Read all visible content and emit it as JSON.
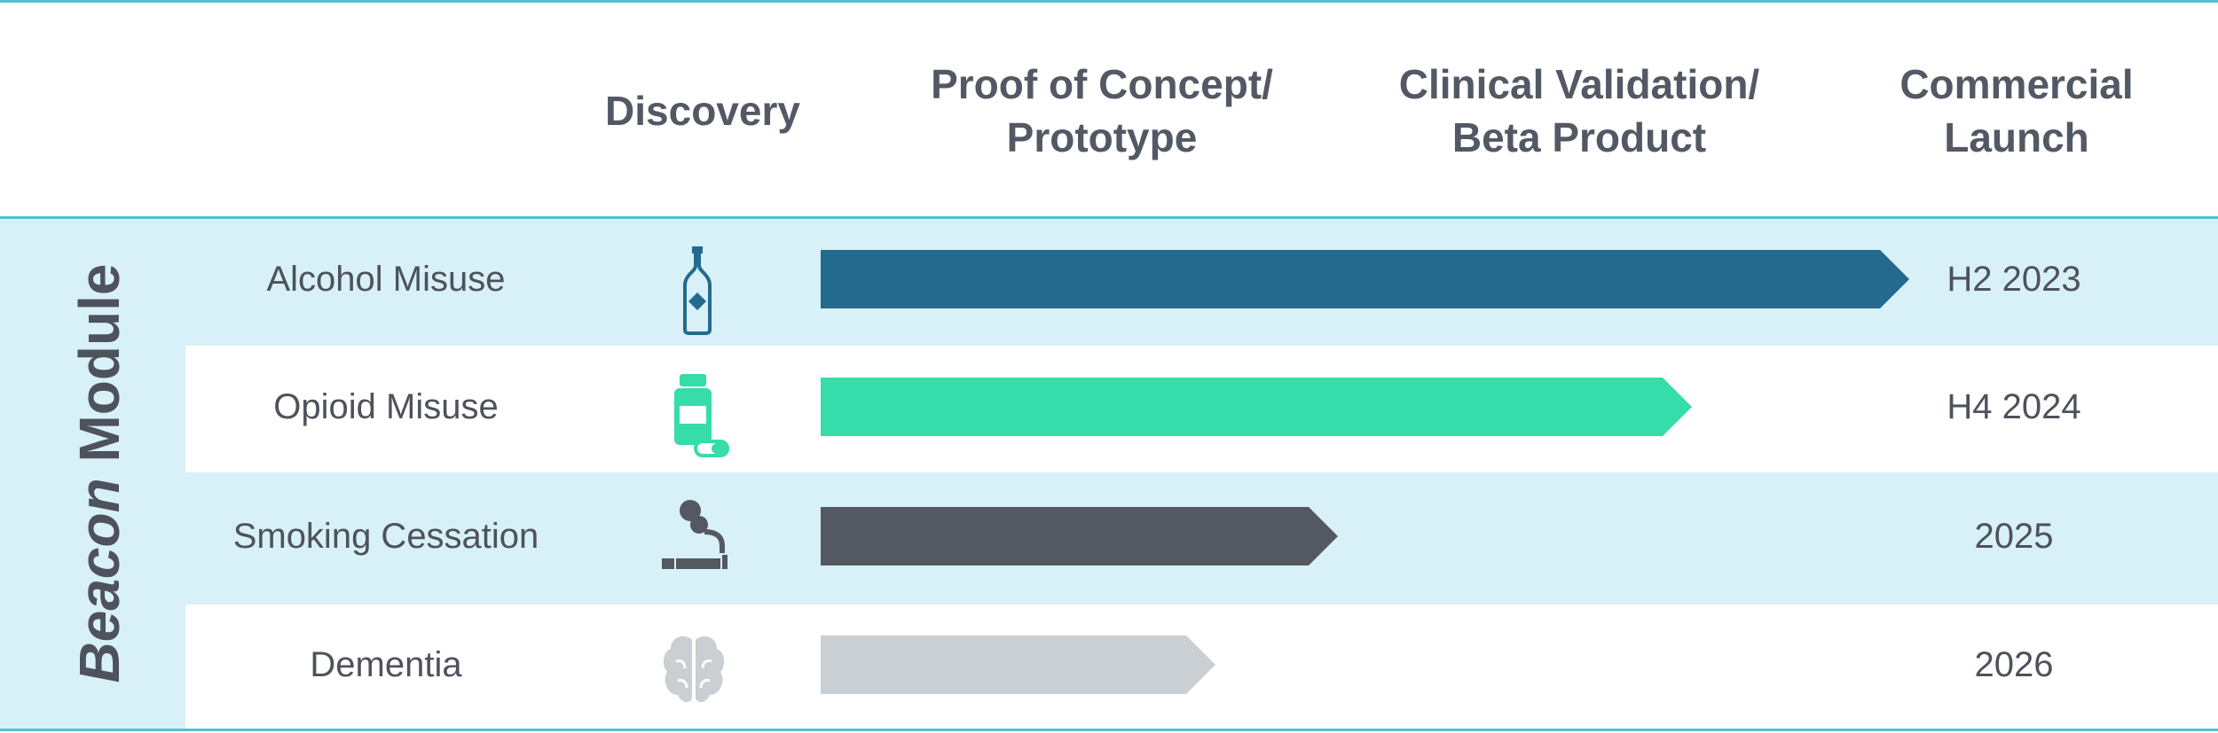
{
  "phases": [
    {
      "label": "Discovery"
    },
    {
      "label": "Proof of Concept/\nPrototype"
    },
    {
      "label": "Clinical Validation/\nBeta Product"
    },
    {
      "label": "Commercial\nLaunch"
    }
  ],
  "module": {
    "title_italic": "Beacon",
    "title_bold": "Module"
  },
  "colors": {
    "rule": "#4ec3cf",
    "band": "#d8f0f7",
    "alcohol": "#236a8e",
    "opioid": "#36dca9",
    "smoking": "#545860",
    "dementia": "#c9cfd2"
  },
  "rows": [
    {
      "label": "Alcohol Misuse",
      "icon": "bottle-icon",
      "date": "H2 2023",
      "progress": 1.0,
      "color": "#236a8e",
      "shaded": true
    },
    {
      "label": "Opioid Misuse",
      "icon": "pill-bottle-icon",
      "date": "H4 2024",
      "progress": 0.8,
      "color": "#36dca9",
      "shaded": false
    },
    {
      "label": "Smoking Cessation",
      "icon": "cigarette-icon",
      "date": "2025",
      "progress": 0.475,
      "color": "#545860",
      "shaded": true
    },
    {
      "label": "Dementia",
      "icon": "brain-icon",
      "date": "2026",
      "progress": 0.363,
      "color": "#c9cfd2",
      "shaded": false
    }
  ]
}
